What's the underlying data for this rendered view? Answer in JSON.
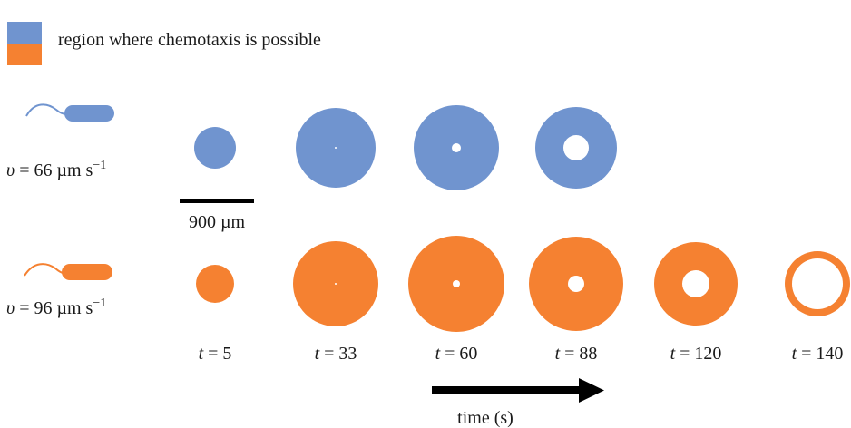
{
  "legend": {
    "label": "region where chemotaxis is possible",
    "colors": [
      "#7094cf",
      "#f58131"
    ]
  },
  "rows": [
    {
      "color": "#7094cf",
      "speed": {
        "symbol": "υ",
        "eq": " = ",
        "value": "66",
        "unit": " µm s",
        "exp": "−1"
      },
      "rings": [
        {
          "t": "5",
          "outer": 23,
          "inner": 0
        },
        {
          "t": "33",
          "outer": 44,
          "inner": 1
        },
        {
          "t": "60",
          "outer": 47,
          "inner": 5
        },
        {
          "t": "88",
          "outer": 45,
          "inner": 14
        }
      ]
    },
    {
      "color": "#f58131",
      "speed": {
        "symbol": "υ",
        "eq": " = ",
        "value": "96",
        "unit": " µm s",
        "exp": "−1"
      },
      "rings": [
        {
          "t": "5",
          "outer": 21,
          "inner": 0
        },
        {
          "t": "33",
          "outer": 47,
          "inner": 1
        },
        {
          "t": "60",
          "outer": 53,
          "inner": 4
        },
        {
          "t": "88",
          "outer": 52,
          "inner": 9
        },
        {
          "t": "120",
          "outer": 46,
          "inner": 15
        },
        {
          "t": "140",
          "outer": 36,
          "inner": 28
        }
      ]
    }
  ],
  "scale_bar": {
    "label": "900 µm"
  },
  "time_labels": {
    "var": "t",
    "eq": " = ",
    "values": [
      "5",
      "33",
      "60",
      "88",
      "120",
      "140"
    ]
  },
  "time_axis": {
    "label": "time (s)"
  }
}
